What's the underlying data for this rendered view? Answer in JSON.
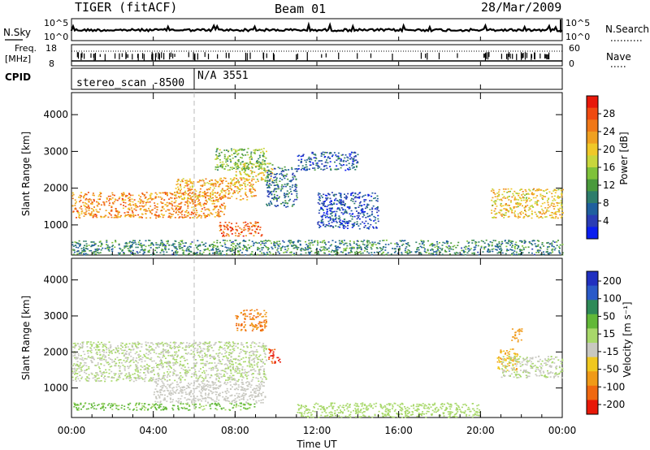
{
  "header": {
    "title": "TIGER (fitACF)",
    "beam": "Beam 01",
    "date": "28/Mar/2009"
  },
  "strips": {
    "nsky_label": "N.Sky",
    "nsky_ticks": [
      "10^5",
      "10^0"
    ],
    "nsearch_label": "N.Search",
    "nsearch_ticks": [
      "10^5",
      "10^0"
    ],
    "freq_label_1": "Freq.",
    "freq_label_2": "[MHz]",
    "freq_ticks": [
      "18",
      "8"
    ],
    "nave_label": "Nave",
    "nave_ticks": [
      "60",
      "0"
    ],
    "cpid_label": "CPID",
    "cpid_entries": [
      {
        "text": "stereo_scan -8500",
        "start_hour": 0
      },
      {
        "text": "N/A 3551",
        "start_hour": 6.0
      }
    ]
  },
  "chart_data": [
    {
      "type": "heatmap",
      "name": "power",
      "ylabel": "Slant Range [km]",
      "ylim": [
        180,
        4600
      ],
      "yticks": [
        1000,
        2000,
        3000,
        4000
      ],
      "xlim": [
        0,
        24
      ],
      "colorbar": {
        "label": "Power [dB]",
        "ticks": [
          4,
          8,
          12,
          16,
          20,
          24,
          28
        ],
        "range": [
          0,
          32
        ],
        "colors": [
          "#0a1ef0",
          "#2a3cb4",
          "#1f5f9e",
          "#2e7d6b",
          "#4a9a3c",
          "#7fc23a",
          "#c8d63c",
          "#f0c828",
          "#f0a020",
          "#f07818",
          "#f04a10",
          "#e8180a"
        ]
      },
      "regions": [
        {
          "x": [
            0,
            7.5
          ],
          "y": [
            1200,
            1900
          ],
          "level": 24,
          "note": ""
        },
        {
          "x": [
            5,
            9
          ],
          "y": [
            1700,
            2300
          ],
          "level": 22
        },
        {
          "x": [
            8,
            9.8
          ],
          "y": [
            2200,
            2700
          ],
          "level": 18
        },
        {
          "x": [
            7,
            9.5
          ],
          "y": [
            2500,
            3100
          ],
          "level": 14
        },
        {
          "x": [
            7.2,
            9.3
          ],
          "y": [
            700,
            1100
          ],
          "level": 26
        },
        {
          "x": [
            9.5,
            11
          ],
          "y": [
            1500,
            2600
          ],
          "level": 8
        },
        {
          "x": [
            11,
            14
          ],
          "y": [
            2500,
            3000
          ],
          "level": 6
        },
        {
          "x": [
            12,
            15
          ],
          "y": [
            900,
            1900
          ],
          "level": 5
        },
        {
          "x": [
            20.5,
            24
          ],
          "y": [
            1200,
            2000
          ],
          "level": 20
        },
        {
          "x": [
            0,
            24
          ],
          "y": [
            200,
            600
          ],
          "level": 10
        }
      ]
    },
    {
      "type": "heatmap",
      "name": "velocity",
      "ylabel": "Slant Range [km]",
      "ylim": [
        180,
        4600
      ],
      "yticks": [
        1000,
        2000,
        3000,
        4000
      ],
      "xlim": [
        0,
        24
      ],
      "xticks": [
        "00:00",
        "04:00",
        "08:00",
        "12:00",
        "16:00",
        "20:00",
        "00:00"
      ],
      "xlabel": "Time UT",
      "colorbar": {
        "label": "Velocity [m s⁻¹]",
        "ticks": [
          "200",
          "100",
          "50",
          "15",
          "-15",
          "-50",
          "-100",
          "-200"
        ],
        "range": [
          -250,
          250
        ],
        "colors": [
          "#2030c0",
          "#2a5ac8",
          "#2f8a58",
          "#62b838",
          "#a8d86a",
          "#c8c8c0",
          "#f0c820",
          "#f09a18",
          "#f06810",
          "#e81808"
        ]
      },
      "regions": [
        {
          "x": [
            0,
            9.5
          ],
          "y": [
            1200,
            2300
          ],
          "vel": 0
        },
        {
          "x": [
            0,
            9
          ],
          "y": [
            400,
            600
          ],
          "vel": 60
        },
        {
          "x": [
            4,
            9.5
          ],
          "y": [
            600,
            1200
          ],
          "vel": -30
        },
        {
          "x": [
            8,
            9.5
          ],
          "y": [
            2600,
            3200
          ],
          "vel": -150
        },
        {
          "x": [
            9.6,
            10.2
          ],
          "y": [
            1700,
            2100
          ],
          "vel": -200
        },
        {
          "x": [
            20.8,
            21.8
          ],
          "y": [
            1500,
            2100
          ],
          "vel": -100
        },
        {
          "x": [
            21.5,
            22
          ],
          "y": [
            2300,
            2700
          ],
          "vel": -120
        },
        {
          "x": [
            21,
            24
          ],
          "y": [
            1300,
            1900
          ],
          "vel": 0
        },
        {
          "x": [
            11,
            20
          ],
          "y": [
            200,
            600
          ],
          "vel": 30
        }
      ]
    }
  ]
}
